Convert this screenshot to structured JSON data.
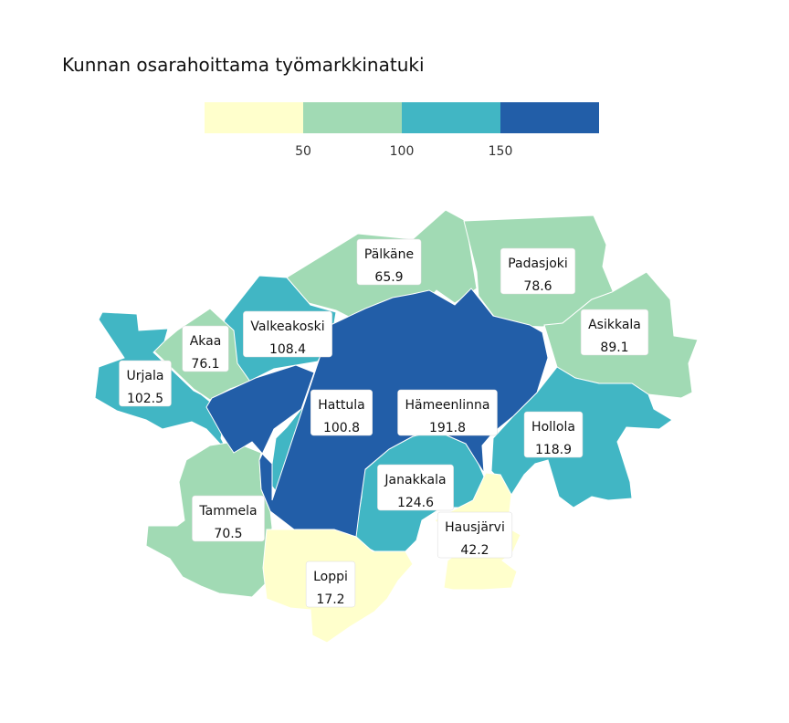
{
  "title": "Kunnan osarahoittama työmarkkinatuki",
  "legend": {
    "breaks": [
      50,
      100,
      150
    ],
    "tick_labels": [
      "50",
      "100",
      "150"
    ],
    "colors": [
      "#ffffcc",
      "#a1dab4",
      "#41b6c4",
      "#225ea8"
    ]
  },
  "chart_data": {
    "type": "choropleth",
    "title": "Kunnan osarahoittama työmarkkinatuki",
    "breaks": [
      50,
      100,
      150
    ],
    "colors": [
      "#ffffcc",
      "#a1dab4",
      "#41b6c4",
      "#225ea8"
    ],
    "regions": [
      {
        "name": "Pälkäne",
        "value": 65.9,
        "value_label": "65.9"
      },
      {
        "name": "Padasjoki",
        "value": 78.6,
        "value_label": "78.6"
      },
      {
        "name": "Asikkala",
        "value": 89.1,
        "value_label": "89.1"
      },
      {
        "name": "Valkeakoski",
        "value": 108.4,
        "value_label": "108.4"
      },
      {
        "name": "Akaa",
        "value": 76.1,
        "value_label": "76.1"
      },
      {
        "name": "Urjala",
        "value": 102.5,
        "value_label": "102.5"
      },
      {
        "name": "Hattula",
        "value": 100.8,
        "value_label": "100.8"
      },
      {
        "name": "Hämeenlinna",
        "value": 191.8,
        "value_label": "191.8"
      },
      {
        "name": "Hollola",
        "value": 118.9,
        "value_label": "118.9"
      },
      {
        "name": "Janakkala",
        "value": 124.6,
        "value_label": "124.6"
      },
      {
        "name": "Hausjärvi",
        "value": 42.2,
        "value_label": "42.2"
      },
      {
        "name": "Tammela",
        "value": 70.5,
        "value_label": "70.5"
      },
      {
        "name": "Loppi",
        "value": 17.2,
        "value_label": "17.2"
      }
    ]
  }
}
